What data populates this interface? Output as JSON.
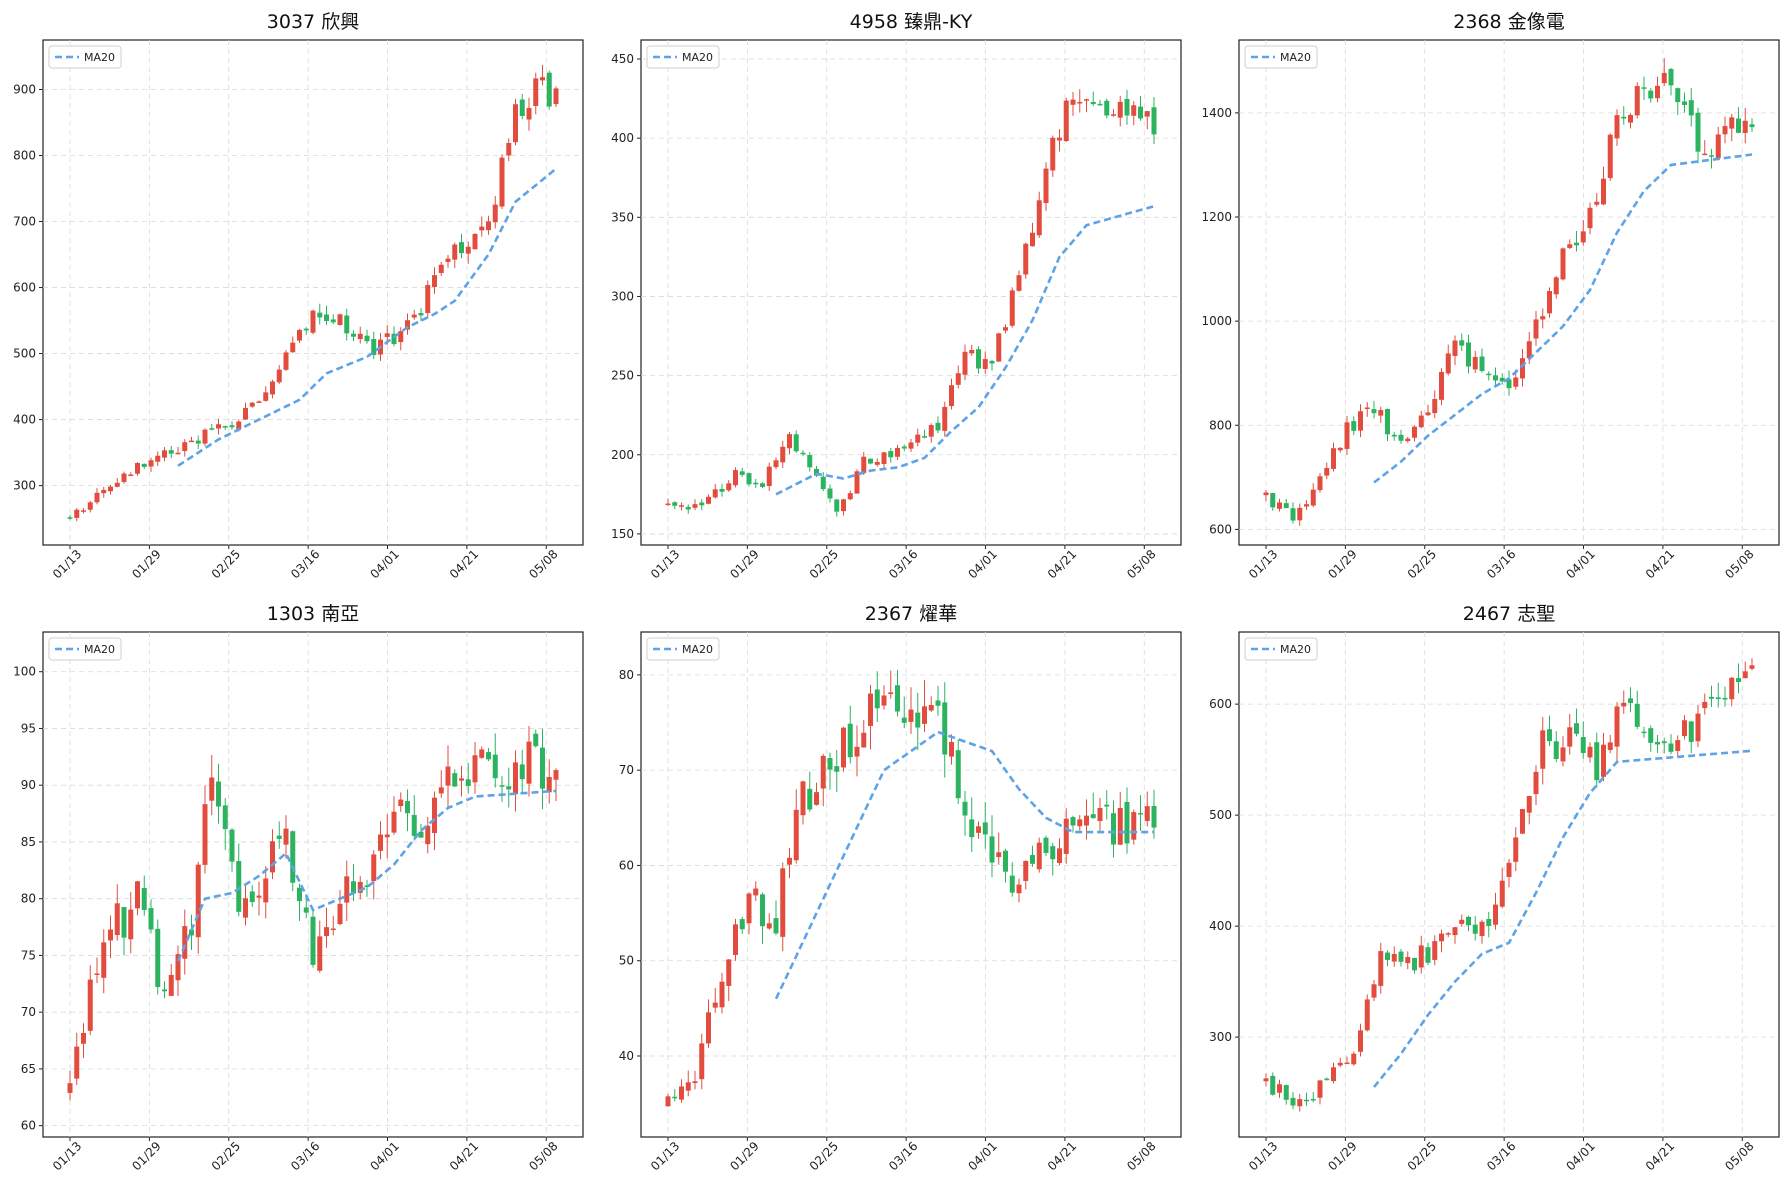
{
  "colors": {
    "up": "#e24c3f",
    "down": "#2bb360",
    "ma": "#5ea3e6",
    "grid": "#d9d9d9",
    "frame": "#222222"
  },
  "chart_data": [
    {
      "type": "candlestick",
      "title": "3037 欣興",
      "legend": {
        "entries": [
          "MA20"
        ],
        "placement": "top-left"
      },
      "grid": true,
      "x_ticks": [
        "01/13",
        "01/29",
        "02/25",
        "03/16",
        "04/01",
        "04/21",
        "05/08"
      ],
      "ylim": [
        210,
        975
      ],
      "y_ticks": [
        300,
        400,
        500,
        600,
        700,
        800,
        900
      ],
      "trend": [
        [
          0,
          250
        ],
        [
          6,
          300
        ],
        [
          12,
          345
        ],
        [
          18,
          365
        ],
        [
          24,
          395
        ],
        [
          30,
          460
        ],
        [
          36,
          565
        ],
        [
          40,
          555
        ],
        [
          45,
          505
        ],
        [
          50,
          540
        ],
        [
          56,
          640
        ],
        [
          62,
          700
        ],
        [
          66,
          860
        ],
        [
          70,
          905
        ],
        [
          72,
          880
        ]
      ],
      "ma_start": 16,
      "ma_points": [
        [
          16,
          330
        ],
        [
          22,
          370
        ],
        [
          28,
          400
        ],
        [
          34,
          430
        ],
        [
          38,
          470
        ],
        [
          44,
          495
        ],
        [
          50,
          540
        ],
        [
          54,
          560
        ],
        [
          57,
          580
        ],
        [
          62,
          650
        ],
        [
          66,
          730
        ],
        [
          72,
          780
        ]
      ],
      "volatility": 0.028
    },
    {
      "type": "candlestick",
      "title": "4958 臻鼎-KY",
      "legend": {
        "entries": [
          "MA20"
        ],
        "placement": "top-left"
      },
      "grid": true,
      "x_ticks": [
        "01/13",
        "01/29",
        "02/25",
        "03/16",
        "04/01",
        "04/21",
        "05/08"
      ],
      "ylim": [
        143,
        462
      ],
      "y_ticks": [
        150,
        200,
        250,
        300,
        350,
        400,
        450
      ],
      "trend": [
        [
          0,
          168
        ],
        [
          5,
          167
        ],
        [
          10,
          188
        ],
        [
          14,
          182
        ],
        [
          18,
          210
        ],
        [
          22,
          185
        ],
        [
          25,
          163
        ],
        [
          29,
          195
        ],
        [
          35,
          205
        ],
        [
          40,
          218
        ],
        [
          44,
          262
        ],
        [
          48,
          258
        ],
        [
          52,
          315
        ],
        [
          56,
          380
        ],
        [
          60,
          428
        ],
        [
          64,
          418
        ],
        [
          72,
          410
        ]
      ],
      "ma_start": 16,
      "ma_points": [
        [
          16,
          175
        ],
        [
          22,
          188
        ],
        [
          26,
          185
        ],
        [
          30,
          190
        ],
        [
          34,
          192
        ],
        [
          38,
          198
        ],
        [
          42,
          215
        ],
        [
          46,
          230
        ],
        [
          50,
          255
        ],
        [
          54,
          285
        ],
        [
          58,
          325
        ],
        [
          62,
          345
        ],
        [
          72,
          357
        ]
      ],
      "volatility": 0.022
    },
    {
      "type": "candlestick",
      "title": "2368 金像電",
      "legend": {
        "entries": [
          "MA20"
        ],
        "placement": "top-left"
      },
      "grid": true,
      "x_ticks": [
        "01/13",
        "01/29",
        "02/25",
        "03/16",
        "04/01",
        "04/21",
        "05/08"
      ],
      "ylim": [
        570,
        1540
      ],
      "y_ticks": [
        600,
        800,
        1000,
        1200,
        1400
      ],
      "trend": [
        [
          0,
          665
        ],
        [
          4,
          615
        ],
        [
          8,
          700
        ],
        [
          12,
          790
        ],
        [
          16,
          840
        ],
        [
          20,
          760
        ],
        [
          24,
          830
        ],
        [
          28,
          960
        ],
        [
          32,
          900
        ],
        [
          36,
          870
        ],
        [
          40,
          990
        ],
        [
          44,
          1120
        ],
        [
          48,
          1200
        ],
        [
          52,
          1380
        ],
        [
          56,
          1450
        ],
        [
          60,
          1480
        ],
        [
          64,
          1330
        ],
        [
          72,
          1390
        ]
      ],
      "ma_start": 16,
      "ma_points": [
        [
          16,
          690
        ],
        [
          20,
          730
        ],
        [
          24,
          780
        ],
        [
          28,
          820
        ],
        [
          32,
          860
        ],
        [
          36,
          890
        ],
        [
          40,
          940
        ],
        [
          44,
          990
        ],
        [
          48,
          1060
        ],
        [
          52,
          1170
        ],
        [
          56,
          1250
        ],
        [
          60,
          1300
        ],
        [
          72,
          1320
        ]
      ],
      "volatility": 0.022
    },
    {
      "type": "candlestick",
      "title": "1303 南亞",
      "legend": {
        "entries": [
          "MA20"
        ],
        "placement": "top-left"
      },
      "grid": true,
      "x_ticks": [
        "01/13",
        "01/29",
        "02/25",
        "03/16",
        "04/01",
        "04/21",
        "05/08"
      ],
      "ylim": [
        59,
        103.5
      ],
      "y_ticks": [
        60,
        65,
        70,
        75,
        80,
        85,
        90,
        95,
        100
      ],
      "trend": [
        [
          0,
          63
        ],
        [
          3,
          72
        ],
        [
          6,
          77
        ],
        [
          10,
          80
        ],
        [
          14,
          72
        ],
        [
          18,
          78
        ],
        [
          21,
          92
        ],
        [
          25,
          78
        ],
        [
          29,
          82
        ],
        [
          32,
          86
        ],
        [
          36,
          74
        ],
        [
          40,
          80
        ],
        [
          44,
          83
        ],
        [
          48,
          89
        ],
        [
          52,
          87
        ],
        [
          56,
          92
        ],
        [
          60,
          91
        ],
        [
          72,
          92
        ]
      ],
      "ma_start": 16,
      "ma_points": [
        [
          16,
          74.5
        ],
        [
          20,
          80
        ],
        [
          24,
          80.5
        ],
        [
          28,
          82
        ],
        [
          32,
          84
        ],
        [
          36,
          79
        ],
        [
          40,
          80
        ],
        [
          44,
          81
        ],
        [
          48,
          83
        ],
        [
          52,
          86
        ],
        [
          56,
          88
        ],
        [
          60,
          89
        ],
        [
          72,
          89.5
        ]
      ],
      "volatility": 0.025
    },
    {
      "type": "candlestick",
      "title": "2367 燿華",
      "legend": {
        "entries": [
          "MA20"
        ],
        "placement": "top-left"
      },
      "grid": true,
      "x_ticks": [
        "01/13",
        "01/29",
        "02/25",
        "03/16",
        "04/01",
        "04/21",
        "05/08"
      ],
      "ylim": [
        31.5,
        84.5
      ],
      "y_ticks": [
        40,
        50,
        60,
        70,
        80
      ],
      "trend": [
        [
          0,
          35
        ],
        [
          4,
          38
        ],
        [
          8,
          48
        ],
        [
          12,
          56
        ],
        [
          16,
          55
        ],
        [
          20,
          68
        ],
        [
          24,
          70
        ],
        [
          28,
          75
        ],
        [
          32,
          78
        ],
        [
          36,
          76
        ],
        [
          40,
          74
        ],
        [
          44,
          67
        ],
        [
          48,
          60
        ],
        [
          52,
          58
        ],
        [
          56,
          62
        ],
        [
          60,
          63.5
        ],
        [
          72,
          64
        ]
      ],
      "ma_start": 16,
      "ma_points": [
        [
          16,
          46
        ],
        [
          20,
          52
        ],
        [
          24,
          58
        ],
        [
          28,
          64
        ],
        [
          32,
          70
        ],
        [
          36,
          72
        ],
        [
          40,
          74
        ],
        [
          44,
          73
        ],
        [
          48,
          72
        ],
        [
          52,
          68
        ],
        [
          56,
          65
        ],
        [
          60,
          63.5
        ],
        [
          72,
          63.5
        ]
      ],
      "volatility": 0.04
    },
    {
      "type": "candlestick",
      "title": "2467 志聖",
      "legend": {
        "entries": [
          "MA20"
        ],
        "placement": "top-left"
      },
      "grid": true,
      "x_ticks": [
        "01/13",
        "01/29",
        "02/25",
        "03/16",
        "04/01",
        "04/21",
        "05/08"
      ],
      "ylim": [
        210,
        665
      ],
      "y_ticks": [
        300,
        400,
        500,
        600
      ],
      "trend": [
        [
          0,
          258
        ],
        [
          5,
          240
        ],
        [
          9,
          260
        ],
        [
          13,
          280
        ],
        [
          17,
          370
        ],
        [
          21,
          365
        ],
        [
          25,
          380
        ],
        [
          29,
          395
        ],
        [
          33,
          410
        ],
        [
          37,
          470
        ],
        [
          41,
          560
        ],
        [
          45,
          570
        ],
        [
          49,
          540
        ],
        [
          53,
          600
        ],
        [
          57,
          575
        ],
        [
          60,
          560
        ],
        [
          72,
          630
        ]
      ],
      "ma_start": 16,
      "ma_points": [
        [
          16,
          255
        ],
        [
          20,
          285
        ],
        [
          24,
          320
        ],
        [
          28,
          350
        ],
        [
          32,
          375
        ],
        [
          36,
          385
        ],
        [
          40,
          430
        ],
        [
          44,
          480
        ],
        [
          48,
          520
        ],
        [
          52,
          548
        ],
        [
          72,
          558
        ]
      ],
      "volatility": 0.03
    }
  ]
}
